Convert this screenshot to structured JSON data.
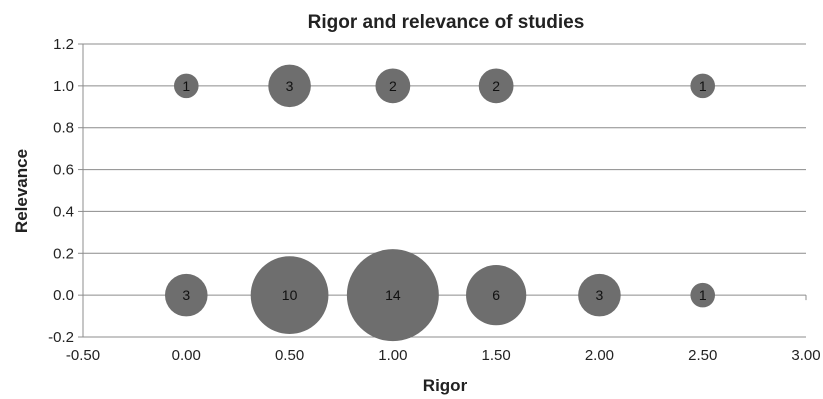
{
  "chart_data": {
    "type": "scatter",
    "title": "Rigor and relevance of studies",
    "xlabel": "Rigor",
    "ylabel": "Relevance",
    "xlim": [
      -0.5,
      3.0
    ],
    "ylim": [
      -0.2,
      1.2
    ],
    "xticks": [
      -0.5,
      0.0,
      0.5,
      1.0,
      1.5,
      2.0,
      2.5,
      3.0
    ],
    "xtick_labels": [
      "-0.50",
      "0.00",
      "0.50",
      "1.00",
      "1.50",
      "2.00",
      "2.50",
      "3.00"
    ],
    "yticks": [
      1.2,
      1.0,
      0.8,
      0.6,
      0.4,
      0.2,
      0.0,
      -0.2
    ],
    "ytick_labels": [
      "1.2",
      "1.0",
      "0.8",
      "0.6",
      "0.4",
      "0.2",
      "0.0",
      "-0.2"
    ],
    "grid": true,
    "legend": "none",
    "series": [
      {
        "bubble_color": "#6e6e6e",
        "points": [
          {
            "x": 0.0,
            "y": 1.0,
            "count": 1
          },
          {
            "x": 0.5,
            "y": 1.0,
            "count": 3
          },
          {
            "x": 1.0,
            "y": 1.0,
            "count": 2
          },
          {
            "x": 1.5,
            "y": 1.0,
            "count": 2
          },
          {
            "x": 2.5,
            "y": 1.0,
            "count": 1
          },
          {
            "x": 0.0,
            "y": 0.0,
            "count": 3
          },
          {
            "x": 0.5,
            "y": 0.0,
            "count": 10
          },
          {
            "x": 1.0,
            "y": 0.0,
            "count": 14
          },
          {
            "x": 1.5,
            "y": 0.0,
            "count": 6
          },
          {
            "x": 2.0,
            "y": 0.0,
            "count": 3
          },
          {
            "x": 2.5,
            "y": 0.0,
            "count": 1
          }
        ]
      }
    ]
  }
}
